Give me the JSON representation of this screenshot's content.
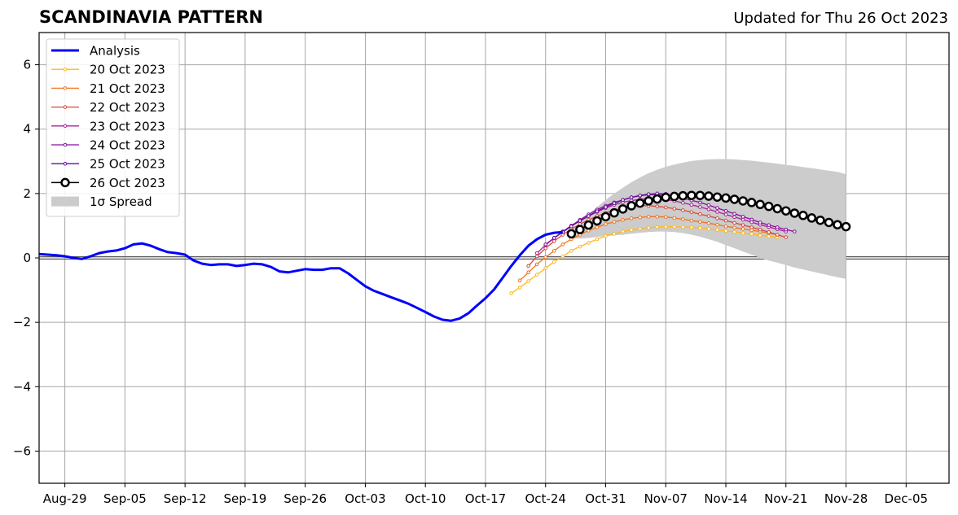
{
  "header": {
    "title": "SCANDINAVIA PATTERN",
    "updated": "Updated for Thu 26 Oct 2023"
  },
  "chart_data": {
    "type": "line",
    "title": "SCANDINAVIA PATTERN",
    "subtitle": "Updated for Thu 26 Oct 2023",
    "xlabel": "",
    "ylabel": "",
    "xlim": [
      "2023-08-26",
      "2023-12-10"
    ],
    "ylim": [
      -7,
      7
    ],
    "x_ticks": [
      "Aug-29",
      "Sep-05",
      "Sep-12",
      "Sep-19",
      "Sep-26",
      "Oct-03",
      "Oct-10",
      "Oct-17",
      "Oct-24",
      "Oct-31",
      "Nov-07",
      "Nov-14",
      "Nov-21",
      "Nov-28",
      "Dec-05"
    ],
    "x_tick_dates": [
      "2023-08-29",
      "2023-09-05",
      "2023-09-12",
      "2023-09-19",
      "2023-09-26",
      "2023-10-03",
      "2023-10-10",
      "2023-10-17",
      "2023-10-24",
      "2023-10-31",
      "2023-11-07",
      "2023-11-14",
      "2023-11-21",
      "2023-11-28",
      "2023-12-05"
    ],
    "y_ticks": [
      -6,
      -4,
      -2,
      0,
      2,
      4,
      6
    ],
    "y_tick_labels": [
      "−6",
      "−4",
      "−2",
      "0",
      "2",
      "4",
      "6"
    ],
    "grid": true,
    "zero_line": true,
    "legend_position": "top-left",
    "legend": [
      "Analysis",
      "20 Oct 2023",
      "21 Oct 2023",
      "22 Oct 2023",
      "23 Oct 2023",
      "24 Oct 2023",
      "25 Oct 2023",
      "26 Oct 2023",
      "1σ Spread"
    ],
    "analysis": {
      "name": "Analysis",
      "color": "#0000ff",
      "x": [
        "2023-08-26",
        "2023-08-27",
        "2023-08-28",
        "2023-08-29",
        "2023-08-30",
        "2023-08-31",
        "2023-09-01",
        "2023-09-02",
        "2023-09-03",
        "2023-09-04",
        "2023-09-05",
        "2023-09-06",
        "2023-09-07",
        "2023-09-08",
        "2023-09-09",
        "2023-09-10",
        "2023-09-11",
        "2023-09-12",
        "2023-09-13",
        "2023-09-14",
        "2023-09-15",
        "2023-09-16",
        "2023-09-17",
        "2023-09-18",
        "2023-09-19",
        "2023-09-20",
        "2023-09-21",
        "2023-09-22",
        "2023-09-23",
        "2023-09-24",
        "2023-09-25",
        "2023-09-26",
        "2023-09-27",
        "2023-09-28",
        "2023-09-29",
        "2023-09-30",
        "2023-10-01",
        "2023-10-02",
        "2023-10-03",
        "2023-10-04",
        "2023-10-05",
        "2023-10-06",
        "2023-10-07",
        "2023-10-08",
        "2023-10-09",
        "2023-10-10",
        "2023-10-11",
        "2023-10-12",
        "2023-10-13",
        "2023-10-14",
        "2023-10-15",
        "2023-10-16",
        "2023-10-17",
        "2023-10-18",
        "2023-10-19",
        "2023-10-20",
        "2023-10-21",
        "2023-10-22",
        "2023-10-23",
        "2023-10-24",
        "2023-10-25",
        "2023-10-26"
      ],
      "y": [
        0.12,
        0.1,
        0.08,
        0.05,
        0.0,
        -0.03,
        0.05,
        0.15,
        0.2,
        0.23,
        0.3,
        0.42,
        0.45,
        0.38,
        0.27,
        0.18,
        0.15,
        0.1,
        -0.08,
        -0.18,
        -0.22,
        -0.2,
        -0.2,
        -0.25,
        -0.22,
        -0.18,
        -0.2,
        -0.28,
        -0.42,
        -0.45,
        -0.4,
        -0.35,
        -0.37,
        -0.37,
        -0.32,
        -0.32,
        -0.48,
        -0.68,
        -0.88,
        -1.02,
        -1.12,
        -1.22,
        -1.32,
        -1.42,
        -1.55,
        -1.68,
        -1.82,
        -1.92,
        -1.95,
        -1.88,
        -1.72,
        -1.48,
        -1.25,
        -0.98,
        -0.62,
        -0.25,
        0.08,
        0.38,
        0.58,
        0.72,
        0.78,
        0.8
      ]
    },
    "series": [
      {
        "name": "20 Oct 2023",
        "color": "#fbb91f",
        "start": "2023-10-20",
        "y": [
          -1.1,
          -0.92,
          -0.72,
          -0.52,
          -0.32,
          -0.12,
          0.05,
          0.22,
          0.35,
          0.47,
          0.58,
          0.68,
          0.75,
          0.82,
          0.87,
          0.91,
          0.94,
          0.96,
          0.97,
          0.97,
          0.96,
          0.95,
          0.93,
          0.9,
          0.87,
          0.84,
          0.81,
          0.77,
          0.74,
          0.7,
          0.67,
          0.64
        ]
      },
      {
        "name": "21 Oct 2023",
        "color": "#f1731d",
        "start": "2023-10-21",
        "y": [
          -0.7,
          -0.45,
          -0.2,
          0.02,
          0.22,
          0.42,
          0.58,
          0.72,
          0.85,
          0.95,
          1.05,
          1.12,
          1.18,
          1.23,
          1.26,
          1.28,
          1.28,
          1.27,
          1.24,
          1.2,
          1.16,
          1.12,
          1.08,
          1.03,
          0.98,
          0.94,
          0.9,
          0.86,
          0.82,
          0.77,
          0.72
        ]
      },
      {
        "name": "22 Oct 2023",
        "color": "#d44842",
        "start": "2023-10-22",
        "y": [
          -0.25,
          0.05,
          0.3,
          0.52,
          0.72,
          0.9,
          1.05,
          1.18,
          1.3,
          1.4,
          1.48,
          1.55,
          1.6,
          1.62,
          1.62,
          1.6,
          1.57,
          1.53,
          1.48,
          1.42,
          1.36,
          1.3,
          1.23,
          1.16,
          1.09,
          1.02,
          0.95,
          0.88,
          0.8,
          0.72,
          0.64
        ]
      },
      {
        "name": "23 Oct 2023",
        "color": "#a82296",
        "start": "2023-10-23",
        "y": [
          0.15,
          0.4,
          0.62,
          0.82,
          1.0,
          1.15,
          1.3,
          1.43,
          1.55,
          1.65,
          1.73,
          1.78,
          1.82,
          1.84,
          1.83,
          1.81,
          1.77,
          1.71,
          1.65,
          1.58,
          1.51,
          1.43,
          1.35,
          1.27,
          1.19,
          1.11,
          1.03,
          0.96,
          0.89,
          0.82
        ]
      },
      {
        "name": "24 Oct 2023",
        "color": "#8a0da3",
        "start": "2023-10-24",
        "y": [
          0.42,
          0.62,
          0.82,
          1.0,
          1.18,
          1.35,
          1.5,
          1.62,
          1.72,
          1.8,
          1.88,
          1.93,
          1.96,
          1.96,
          1.94,
          1.9,
          1.85,
          1.79,
          1.72,
          1.64,
          1.55,
          1.46,
          1.37,
          1.28,
          1.19,
          1.1,
          1.02,
          0.95,
          0.88,
          0.82
        ]
      },
      {
        "name": "25 Oct 2023",
        "color": "#5b0f91",
        "start": "2023-10-25",
        "y": [
          0.62,
          0.8,
          0.98,
          1.15,
          1.3,
          1.45,
          1.58,
          1.7,
          1.8,
          1.88,
          1.94,
          1.98,
          2.0,
          1.99
        ]
      },
      {
        "name": "26 Oct 2023",
        "color": "#000000",
        "start": "2023-10-27",
        "y": [
          0.75,
          0.88,
          1.02,
          1.15,
          1.28,
          1.4,
          1.52,
          1.62,
          1.7,
          1.77,
          1.83,
          1.88,
          1.91,
          1.93,
          1.94,
          1.94,
          1.92,
          1.89,
          1.86,
          1.82,
          1.77,
          1.72,
          1.66,
          1.6,
          1.53,
          1.46,
          1.39,
          1.32,
          1.24,
          1.17,
          1.1,
          1.03,
          0.97
        ]
      }
    ],
    "spread": {
      "name": "1σ Spread",
      "color": "#cccccc",
      "start": "2023-10-27",
      "upper": [
        0.85,
        1.1,
        1.35,
        1.58,
        1.8,
        2.0,
        2.18,
        2.35,
        2.5,
        2.63,
        2.74,
        2.83,
        2.9,
        2.96,
        3.01,
        3.04,
        3.06,
        3.07,
        3.07,
        3.06,
        3.04,
        3.02,
        2.99,
        2.96,
        2.93,
        2.89,
        2.86,
        2.82,
        2.79,
        2.75,
        2.71,
        2.67,
        2.6
      ],
      "lower": [
        0.6,
        0.6,
        0.62,
        0.65,
        0.68,
        0.7,
        0.72,
        0.75,
        0.78,
        0.8,
        0.82,
        0.82,
        0.8,
        0.77,
        0.72,
        0.66,
        0.58,
        0.5,
        0.4,
        0.3,
        0.2,
        0.1,
        0.0,
        -0.08,
        -0.15,
        -0.22,
        -0.3,
        -0.36,
        -0.42,
        -0.48,
        -0.54,
        -0.6,
        -0.65
      ]
    }
  }
}
